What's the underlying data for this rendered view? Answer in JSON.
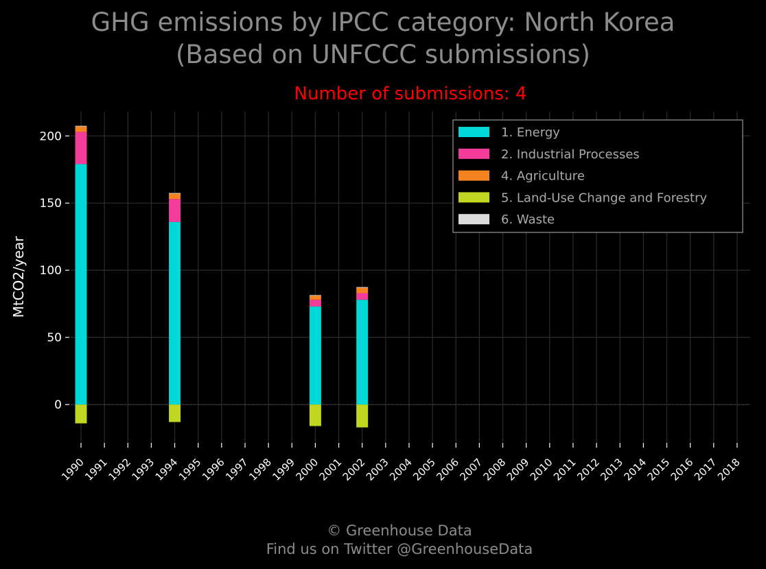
{
  "title_line1": "GHG emissions by IPCC category: North Korea",
  "title_line2": "(Based on UNFCCC submissions)",
  "subtitle": "Number of submissions: 4",
  "footer_line1": "© Greenhouse Data",
  "footer_line2": "Find us on Twitter @GreenhouseData",
  "colors": {
    "background": "#000000",
    "grid": "#2a2a2a",
    "axis_text": "#ffffff",
    "title": "#8c8c8c",
    "subtitle": "#ff0000",
    "legend_border": "#7a7a7a"
  },
  "chart_data": {
    "type": "bar",
    "stacked": true,
    "categories": [
      "1990",
      "1991",
      "1992",
      "1993",
      "1994",
      "1995",
      "1996",
      "1997",
      "1998",
      "1999",
      "2000",
      "2001",
      "2002",
      "2003",
      "2004",
      "2005",
      "2006",
      "2007",
      "2008",
      "2009",
      "2010",
      "2011",
      "2012",
      "2013",
      "2014",
      "2015",
      "2016",
      "2017",
      "2018"
    ],
    "series": [
      {
        "name": "1. Energy",
        "color": "#00d7d7",
        "values": [
          179,
          null,
          null,
          null,
          136,
          null,
          null,
          null,
          null,
          null,
          73,
          null,
          78,
          null,
          null,
          null,
          null,
          null,
          null,
          null,
          null,
          null,
          null,
          null,
          null,
          null,
          null,
          null,
          null
        ]
      },
      {
        "name": "2. Industrial Processes",
        "color": "#f53c9a",
        "values": [
          24,
          null,
          null,
          null,
          17,
          null,
          null,
          null,
          null,
          null,
          5,
          null,
          5,
          null,
          null,
          null,
          null,
          null,
          null,
          null,
          null,
          null,
          null,
          null,
          null,
          null,
          null,
          null,
          null
        ]
      },
      {
        "name": "4. Agriculture",
        "color": "#f58220",
        "values": [
          4,
          null,
          null,
          null,
          4,
          null,
          null,
          null,
          null,
          null,
          3,
          null,
          4,
          null,
          null,
          null,
          null,
          null,
          null,
          null,
          null,
          null,
          null,
          null,
          null,
          null,
          null,
          null,
          null
        ]
      },
      {
        "name": "5. Land-Use Change and Forestry",
        "color": "#c0d621",
        "values": [
          -14,
          null,
          null,
          null,
          -13,
          null,
          null,
          null,
          null,
          null,
          -16,
          null,
          -17,
          null,
          null,
          null,
          null,
          null,
          null,
          null,
          null,
          null,
          null,
          null,
          null,
          null,
          null,
          null,
          null
        ]
      },
      {
        "name": "6. Waste",
        "color": "#dcdcdc",
        "values": [
          0.5,
          null,
          null,
          null,
          0.5,
          null,
          null,
          null,
          null,
          null,
          0.5,
          null,
          0.5,
          null,
          null,
          null,
          null,
          null,
          null,
          null,
          null,
          null,
          null,
          null,
          null,
          null,
          null,
          null,
          null
        ]
      }
    ],
    "ylabel": "MtCO2/year",
    "xlabel": "",
    "ylim": [
      -28,
      218
    ],
    "yticks": [
      0,
      50,
      100,
      150,
      200
    ],
    "grid": true,
    "legend_position": "top-right"
  }
}
